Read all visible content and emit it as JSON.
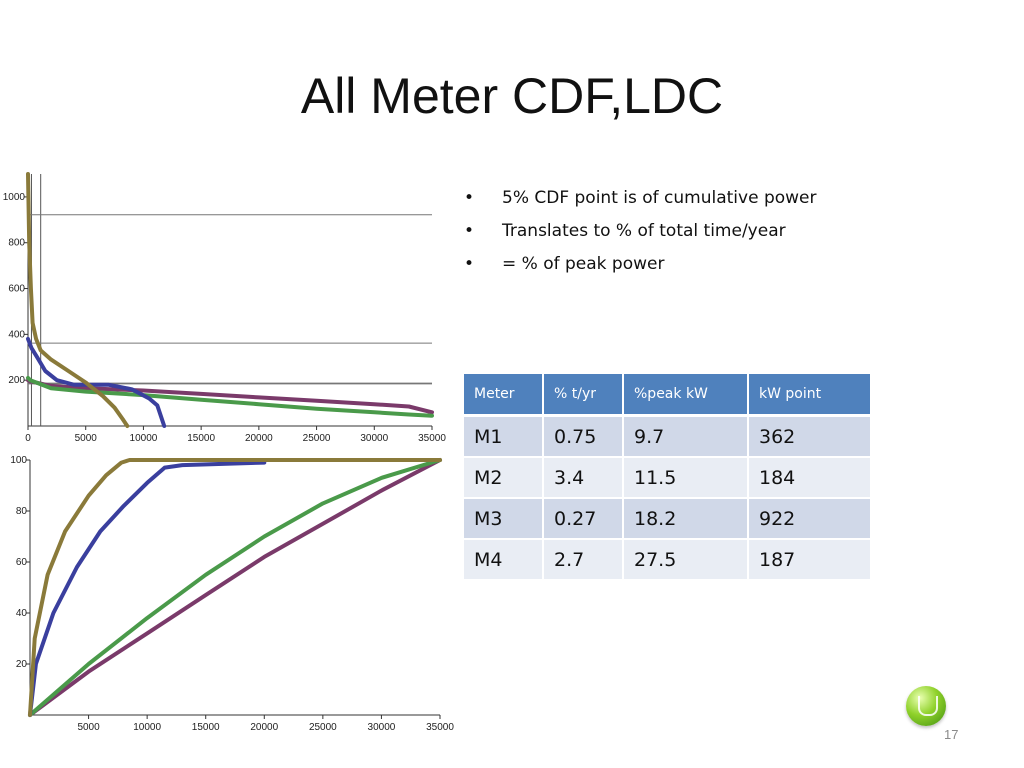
{
  "slide": {
    "title": "All Meter CDF,LDC",
    "page_number": "17"
  },
  "bullets": [
    "5% CDF point is of cumulative power",
    "Translates to % of total time/year",
    "= % of peak power"
  ],
  "table": {
    "headers": [
      "Meter",
      "% t/yr",
      "%peak kW",
      "kW point"
    ],
    "rows": [
      [
        "M1",
        "0.75",
        "9.7",
        "362"
      ],
      [
        "M2",
        "3.4",
        "11.5",
        "184"
      ],
      [
        "M3",
        "0.27",
        "18.2",
        "922"
      ],
      [
        "M4",
        "2.7",
        "27.5",
        "187"
      ]
    ]
  },
  "colors": {
    "M1": "#3a3f9e",
    "M2": "#8a7a3a",
    "M3": "#7a3a6a",
    "M4": "#4a9a4a",
    "header": "#4f81bd"
  },
  "chart_data": [
    {
      "type": "line",
      "chart": "load-duration-curve",
      "xlim": [
        0,
        35000
      ],
      "ylim": [
        0,
        1100
      ],
      "xticks": [
        0,
        5000,
        10000,
        15000,
        20000,
        25000,
        30000,
        35000
      ],
      "yticks": [
        200,
        400,
        600,
        800,
        1000
      ],
      "vlines": [
        {
          "x": 300,
          "color": "#555555"
        },
        {
          "x": 1100,
          "color": "#555555"
        }
      ],
      "hlines": [
        {
          "y": 922,
          "color": "#777777"
        },
        {
          "y": 362,
          "color": "#777777"
        },
        {
          "y": 187,
          "color": "#777777"
        },
        {
          "y": 184,
          "color": "#777777"
        }
      ],
      "series": [
        {
          "color": "#7a3a6a",
          "x": [
            0,
            200,
            2000,
            5000,
            10000,
            15000,
            20000,
            25000,
            30000,
            33000,
            35000
          ],
          "y": [
            200,
            195,
            175,
            165,
            155,
            140,
            125,
            110,
            95,
            85,
            60
          ]
        },
        {
          "color": "#4a9a4a",
          "x": [
            0,
            200,
            2000,
            5000,
            10000,
            15000,
            20000,
            25000,
            30000,
            33000,
            35000
          ],
          "y": [
            210,
            200,
            165,
            150,
            135,
            115,
            95,
            75,
            60,
            50,
            45
          ]
        },
        {
          "color": "#3a3f9e",
          "x": [
            0,
            300,
            800,
            1500,
            2500,
            4000,
            7000,
            9000,
            10500,
            11200,
            11800
          ],
          "y": [
            380,
            340,
            300,
            240,
            200,
            180,
            180,
            160,
            120,
            90,
            0
          ]
        },
        {
          "color": "#8a7a3a",
          "x": [
            0,
            100,
            250,
            400,
            700,
            1100,
            2000,
            3500,
            5000,
            6500,
            7500,
            8200,
            8600
          ],
          "y": [
            1100,
            800,
            600,
            450,
            380,
            330,
            290,
            240,
            190,
            130,
            80,
            30,
            0
          ]
        }
      ]
    },
    {
      "type": "line",
      "chart": "cumulative-distribution",
      "xlim": [
        0,
        35000
      ],
      "ylim": [
        0,
        100
      ],
      "xticks": [
        5000,
        10000,
        15000,
        20000,
        25000,
        30000,
        35000
      ],
      "yticks": [
        20,
        40,
        60,
        80,
        100
      ],
      "series": [
        {
          "color": "#7a3a6a",
          "x": [
            0,
            5000,
            10000,
            15000,
            20000,
            25000,
            30000,
            35000
          ],
          "y": [
            0,
            17,
            32,
            47,
            62,
            75,
            88,
            100
          ]
        },
        {
          "color": "#4a9a4a",
          "x": [
            0,
            5000,
            10000,
            15000,
            20000,
            25000,
            30000,
            35000
          ],
          "y": [
            0,
            20,
            38,
            55,
            70,
            83,
            93,
            100
          ]
        },
        {
          "color": "#3a3f9e",
          "x": [
            0,
            500,
            2000,
            4000,
            6000,
            8000,
            10000,
            11500,
            13000,
            20000
          ],
          "y": [
            0,
            20,
            40,
            58,
            72,
            82,
            91,
            97,
            98,
            99
          ]
        },
        {
          "color": "#8a7a3a",
          "x": [
            0,
            400,
            1500,
            3000,
            5000,
            6500,
            7800,
            8500,
            35000
          ],
          "y": [
            0,
            30,
            55,
            72,
            86,
            94,
            99,
            100,
            100
          ]
        }
      ]
    }
  ]
}
